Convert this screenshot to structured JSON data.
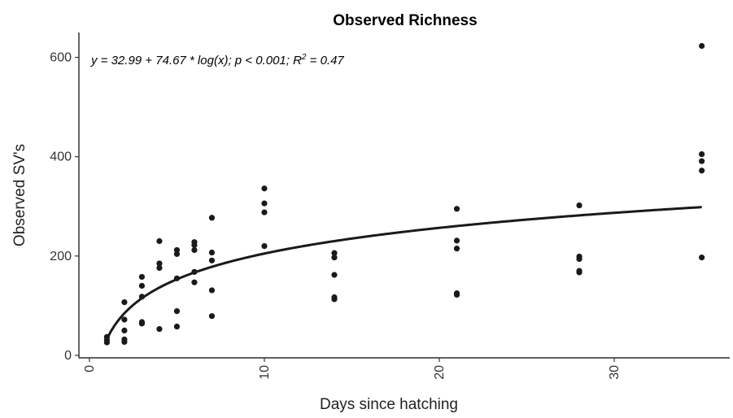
{
  "chart_data": {
    "type": "scatter",
    "title": "Observed Richness",
    "xlabel": "Days since hatching",
    "ylabel": "Observed SV's",
    "xlim": [
      -0.6,
      36.6
    ],
    "ylim": [
      -5,
      650
    ],
    "x_ticks": [
      0,
      10,
      20,
      30
    ],
    "y_ticks": [
      0,
      200,
      400,
      600
    ],
    "x_tick_labels_rotated": true,
    "grid": false,
    "annotation": {
      "text_main": "y = 32.99 + 74.67 * log(x); p < 0.001; R",
      "text_sup": "2",
      "text_tail": " = 0.47"
    },
    "fit": {
      "model": "y = a + b*log(x)",
      "a": 32.99,
      "b": 74.67,
      "x_from": 1,
      "x_to": 35
    },
    "points": [
      {
        "x": 1,
        "y": 37
      },
      {
        "x": 1,
        "y": 31
      },
      {
        "x": 1,
        "y": 26
      },
      {
        "x": 2,
        "y": 107
      },
      {
        "x": 2,
        "y": 72
      },
      {
        "x": 2,
        "y": 50
      },
      {
        "x": 2,
        "y": 32
      },
      {
        "x": 2,
        "y": 27
      },
      {
        "x": 3,
        "y": 158
      },
      {
        "x": 3,
        "y": 140
      },
      {
        "x": 3,
        "y": 118
      },
      {
        "x": 3,
        "y": 67
      },
      {
        "x": 3,
        "y": 64
      },
      {
        "x": 4,
        "y": 230
      },
      {
        "x": 4,
        "y": 185
      },
      {
        "x": 4,
        "y": 176
      },
      {
        "x": 4,
        "y": 53
      },
      {
        "x": 5,
        "y": 212
      },
      {
        "x": 5,
        "y": 204
      },
      {
        "x": 5,
        "y": 155
      },
      {
        "x": 5,
        "y": 89
      },
      {
        "x": 5,
        "y": 58
      },
      {
        "x": 6,
        "y": 228
      },
      {
        "x": 6,
        "y": 222
      },
      {
        "x": 6,
        "y": 212
      },
      {
        "x": 6,
        "y": 168
      },
      {
        "x": 6,
        "y": 147
      },
      {
        "x": 7,
        "y": 277
      },
      {
        "x": 7,
        "y": 207
      },
      {
        "x": 7,
        "y": 191
      },
      {
        "x": 7,
        "y": 131
      },
      {
        "x": 7,
        "y": 79
      },
      {
        "x": 10,
        "y": 336
      },
      {
        "x": 10,
        "y": 306
      },
      {
        "x": 10,
        "y": 288
      },
      {
        "x": 10,
        "y": 220
      },
      {
        "x": 14,
        "y": 206
      },
      {
        "x": 14,
        "y": 197
      },
      {
        "x": 14,
        "y": 162
      },
      {
        "x": 14,
        "y": 117
      },
      {
        "x": 14,
        "y": 113
      },
      {
        "x": 21,
        "y": 295
      },
      {
        "x": 21,
        "y": 231
      },
      {
        "x": 21,
        "y": 215
      },
      {
        "x": 21,
        "y": 125
      },
      {
        "x": 21,
        "y": 122
      },
      {
        "x": 28,
        "y": 302
      },
      {
        "x": 28,
        "y": 199
      },
      {
        "x": 28,
        "y": 194
      },
      {
        "x": 28,
        "y": 170
      },
      {
        "x": 28,
        "y": 167
      },
      {
        "x": 35,
        "y": 623
      },
      {
        "x": 35,
        "y": 405
      },
      {
        "x": 35,
        "y": 391
      },
      {
        "x": 35,
        "y": 372
      },
      {
        "x": 35,
        "y": 197
      }
    ]
  }
}
